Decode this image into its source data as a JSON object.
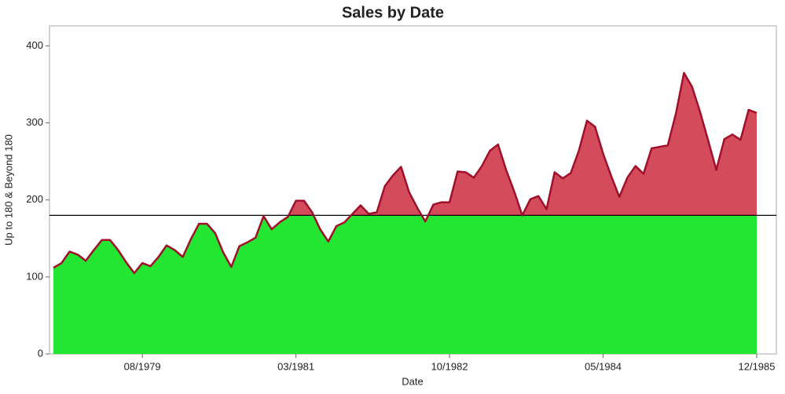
{
  "chart_data": {
    "type": "area",
    "title": "Sales by Date",
    "x_label": "Date",
    "y_label": "Up to 180 & Beyond 180",
    "x": [
      "09/1978",
      "10/1978",
      "11/1978",
      "12/1978",
      "01/1979",
      "02/1979",
      "03/1979",
      "04/1979",
      "05/1979",
      "06/1979",
      "07/1979",
      "08/1979",
      "09/1979",
      "10/1979",
      "11/1979",
      "12/1979",
      "01/1980",
      "02/1980",
      "03/1980",
      "04/1980",
      "05/1980",
      "06/1980",
      "07/1980",
      "08/1980",
      "09/1980",
      "10/1980",
      "11/1980",
      "12/1980",
      "01/1981",
      "02/1981",
      "03/1981",
      "04/1981",
      "05/1981",
      "06/1981",
      "07/1981",
      "08/1981",
      "09/1981",
      "10/1981",
      "11/1981",
      "12/1981",
      "01/1982",
      "02/1982",
      "03/1982",
      "04/1982",
      "05/1982",
      "06/1982",
      "07/1982",
      "08/1982",
      "09/1982",
      "10/1982",
      "11/1982",
      "12/1982",
      "01/1983",
      "02/1983",
      "03/1983",
      "04/1983",
      "05/1983",
      "06/1983",
      "07/1983",
      "08/1983",
      "09/1983",
      "10/1983",
      "11/1983",
      "12/1983",
      "01/1984",
      "02/1984",
      "03/1984",
      "04/1984",
      "05/1984",
      "06/1984",
      "07/1984",
      "08/1984",
      "09/1984",
      "10/1984",
      "11/1984",
      "12/1984",
      "01/1985",
      "02/1985",
      "03/1985",
      "04/1985",
      "05/1985",
      "06/1985",
      "07/1985",
      "08/1985",
      "09/1985",
      "10/1985",
      "11/1985",
      "12/1985"
    ],
    "values": [
      112,
      118,
      133,
      129,
      121,
      135,
      148,
      148,
      135,
      119,
      105,
      118,
      114,
      126,
      141,
      135,
      126,
      149,
      169,
      169,
      157,
      132,
      113,
      140,
      145,
      151,
      179,
      162,
      171,
      178,
      199,
      199,
      184,
      162,
      146,
      166,
      171,
      182,
      193,
      182,
      184,
      218,
      232,
      243,
      210,
      190,
      172,
      194,
      197,
      197,
      237,
      236,
      229,
      244,
      264,
      272,
      239,
      211,
      180,
      201,
      205,
      188,
      236,
      228,
      235,
      264,
      303,
      295,
      260,
      231,
      204,
      229,
      244,
      234,
      267,
      269,
      271,
      312,
      365,
      347,
      314,
      277,
      239,
      279,
      285,
      278,
      317,
      313
    ],
    "threshold": 180,
    "color_below": "#22e632",
    "color_above": "#d44b5c",
    "line_color": "#a0102a",
    "xlim": [
      "09/1978",
      "12/1985"
    ],
    "xticks": [
      "08/1979",
      "03/1981",
      "10/1982",
      "05/1984",
      "12/1985"
    ],
    "ylim": [
      0,
      426
    ],
    "yticks": [
      0,
      100,
      200,
      300,
      400
    ]
  }
}
